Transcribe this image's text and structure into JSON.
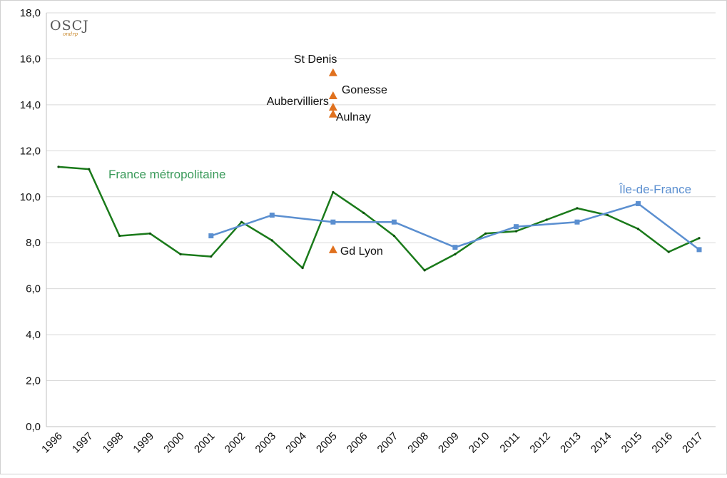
{
  "logo": {
    "text": "OSCJ",
    "subtext": "ondrp"
  },
  "chart_data": {
    "type": "line",
    "title": "",
    "xlabel": "",
    "ylabel": "",
    "x": [
      1996,
      1997,
      1998,
      1999,
      2000,
      2001,
      2002,
      2003,
      2004,
      2005,
      2006,
      2007,
      2008,
      2009,
      2010,
      2011,
      2012,
      2013,
      2014,
      2015,
      2016,
      2017
    ],
    "x_tick_labels": [
      "1996",
      "1997",
      "1998",
      "1999",
      "2000",
      "2001",
      "2002",
      "2003",
      "2004",
      "2005",
      "2006",
      "2007",
      "2008",
      "2009",
      "2010",
      "2011",
      "2012",
      "2013",
      "2014",
      "2015",
      "2016",
      "2017"
    ],
    "ylim": [
      0,
      18
    ],
    "y_ticks": [
      0,
      2,
      4,
      6,
      8,
      10,
      12,
      14,
      16,
      18
    ],
    "y_tick_labels": [
      "0,0",
      "2,0",
      "4,0",
      "6,0",
      "8,0",
      "10,0",
      "12,0",
      "14,0",
      "16,0",
      "18,0"
    ],
    "grid": "horizontal",
    "series": [
      {
        "name": "France métropolitaine",
        "color": "#1a7a1a",
        "label_color": "#3a9a5a",
        "marker": "dot",
        "points": [
          [
            1996,
            11.3
          ],
          [
            1997,
            11.2
          ],
          [
            1998,
            8.3
          ],
          [
            1999,
            8.4
          ],
          [
            2000,
            7.5
          ],
          [
            2001,
            7.4
          ],
          [
            2002,
            8.9
          ],
          [
            2003,
            8.1
          ],
          [
            2004,
            6.9
          ],
          [
            2005,
            10.2
          ],
          [
            2006,
            9.3
          ],
          [
            2007,
            8.3
          ],
          [
            2008,
            6.8
          ],
          [
            2009,
            7.5
          ],
          [
            2010,
            8.4
          ],
          [
            2011,
            8.5
          ],
          [
            2012,
            9.0
          ],
          [
            2013,
            9.5
          ],
          [
            2014,
            9.2
          ],
          [
            2015,
            8.6
          ],
          [
            2016,
            7.6
          ],
          [
            2017,
            8.2
          ]
        ]
      },
      {
        "name": "Île-de-France",
        "color": "#5b8fd0",
        "label_color": "#5b8fd0",
        "marker": "square",
        "points": [
          [
            2001,
            8.3
          ],
          [
            2003,
            9.2
          ],
          [
            2005,
            8.9
          ],
          [
            2007,
            8.9
          ],
          [
            2009,
            7.8
          ],
          [
            2011,
            8.7
          ],
          [
            2013,
            8.9
          ],
          [
            2015,
            9.7
          ],
          [
            2017,
            7.7
          ]
        ]
      }
    ],
    "annotations": [
      {
        "label": "St Denis",
        "x": 2005,
        "y": 15.4,
        "color": "#e0711e"
      },
      {
        "label": "Gonesse",
        "x": 2005,
        "y": 14.4,
        "color": "#e0711e"
      },
      {
        "label": "Aubervilliers",
        "x": 2005,
        "y": 13.9,
        "color": "#e0711e"
      },
      {
        "label": "Aulnay",
        "x": 2005,
        "y": 13.6,
        "color": "#e0711e"
      },
      {
        "label": "Gd Lyon",
        "x": 2005,
        "y": 7.7,
        "color": "#e0711e"
      }
    ]
  }
}
